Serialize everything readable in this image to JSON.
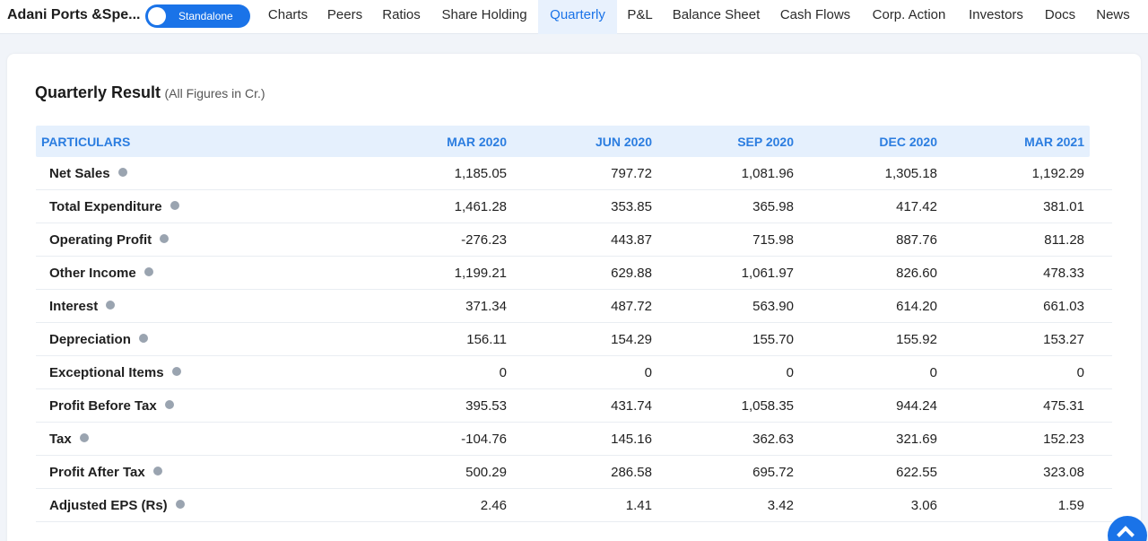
{
  "header": {
    "company": "Adani Ports &Spe...",
    "toggle_label": "Standalone",
    "tabs": [
      {
        "label": "Charts"
      },
      {
        "label": "Peers"
      },
      {
        "label": "Ratios"
      },
      {
        "label": "Share Holding"
      },
      {
        "label": "Quarterly"
      },
      {
        "label": "P&L"
      },
      {
        "label": "Balance Sheet"
      },
      {
        "label": "Cash Flows"
      },
      {
        "label": "Corp. Action"
      },
      {
        "label": "Investors"
      },
      {
        "label": "Docs"
      },
      {
        "label": "News"
      }
    ],
    "active_tab": "Quarterly"
  },
  "section": {
    "title": "Quarterly Result",
    "subtitle": "(All Figures in Cr.)"
  },
  "table": {
    "columns": [
      "PARTICULARS",
      "MAR 2020",
      "JUN 2020",
      "SEP 2020",
      "DEC 2020",
      "MAR 2021"
    ],
    "rows": [
      {
        "label": "Net Sales",
        "values": [
          "1,185.05",
          "797.72",
          "1,081.96",
          "1,305.18",
          "1,192.29"
        ]
      },
      {
        "label": "Total Expenditure",
        "values": [
          "1,461.28",
          "353.85",
          "365.98",
          "417.42",
          "381.01"
        ]
      },
      {
        "label": "Operating Profit",
        "values": [
          "-276.23",
          "443.87",
          "715.98",
          "887.76",
          "811.28"
        ]
      },
      {
        "label": "Other Income",
        "values": [
          "1,199.21",
          "629.88",
          "1,061.97",
          "826.60",
          "478.33"
        ]
      },
      {
        "label": "Interest",
        "values": [
          "371.34",
          "487.72",
          "563.90",
          "614.20",
          "661.03"
        ]
      },
      {
        "label": "Depreciation",
        "values": [
          "156.11",
          "154.29",
          "155.70",
          "155.92",
          "153.27"
        ]
      },
      {
        "label": "Exceptional Items",
        "values": [
          "0",
          "0",
          "0",
          "0",
          "0"
        ]
      },
      {
        "label": "Profit Before Tax",
        "values": [
          "395.53",
          "431.74",
          "1,058.35",
          "944.24",
          "475.31"
        ]
      },
      {
        "label": "Tax",
        "values": [
          "-104.76",
          "145.16",
          "362.63",
          "321.69",
          "152.23"
        ]
      },
      {
        "label": "Profit After Tax",
        "values": [
          "500.29",
          "286.58",
          "695.72",
          "622.55",
          "323.08"
        ]
      },
      {
        "label": "Adjusted EPS (Rs)",
        "values": [
          "2.46",
          "1.41",
          "3.42",
          "3.06",
          "1.59"
        ]
      }
    ]
  },
  "colors": {
    "accent": "#1a73e8",
    "header_bg": "#e5f0fd",
    "header_text": "#2b7de0"
  },
  "icons": {
    "info": "info-icon",
    "scroll_top": "chevron-up-icon"
  }
}
